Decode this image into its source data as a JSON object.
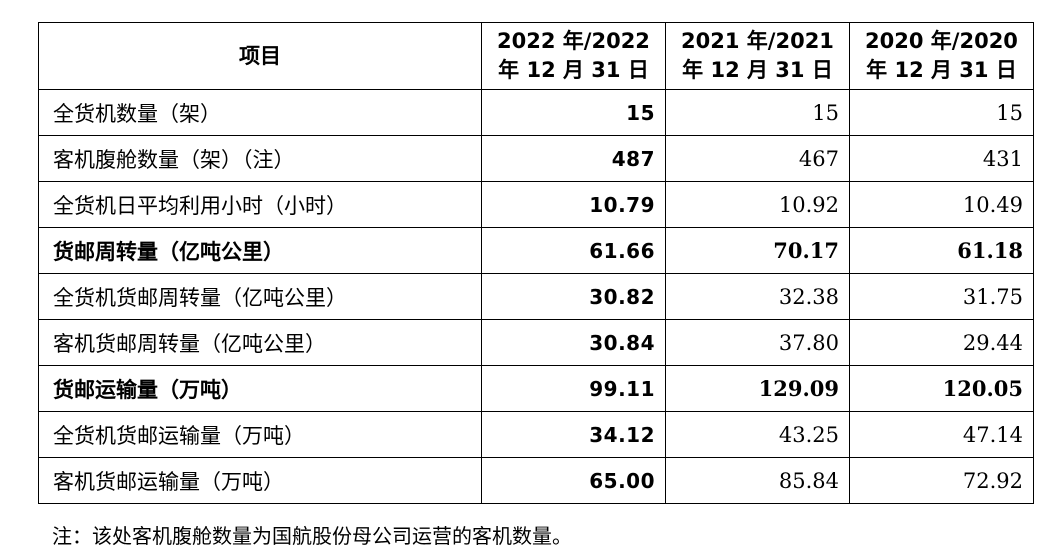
{
  "table": {
    "headers": {
      "item": "项目",
      "col1": [
        "2022 年/2022",
        "年 12 月 31 日"
      ],
      "col2": [
        "2021 年/2021",
        "年 12 月 31 日"
      ],
      "col3": [
        "2020 年/2020",
        "年 12 月 31 日"
      ]
    },
    "rows": [
      {
        "label": "全货机数量（架）",
        "v2022": "15",
        "v2021": "15",
        "v2020": "15",
        "bold": false
      },
      {
        "label": "客机腹舱数量（架）（注）",
        "v2022": "487",
        "v2021": "467",
        "v2020": "431",
        "bold": false
      },
      {
        "label": "全货机日平均利用小时（小时）",
        "v2022": "10.79",
        "v2021": "10.92",
        "v2020": "10.49",
        "bold": false
      },
      {
        "label": "货邮周转量（亿吨公里）",
        "v2022": "61.66",
        "v2021": "70.17",
        "v2020": "61.18",
        "bold": true
      },
      {
        "label": "全货机货邮周转量（亿吨公里）",
        "v2022": "30.82",
        "v2021": "32.38",
        "v2020": "31.75",
        "bold": false
      },
      {
        "label": "客机货邮周转量（亿吨公里）",
        "v2022": "30.84",
        "v2021": "37.80",
        "v2020": "29.44",
        "bold": false
      },
      {
        "label": "货邮运输量（万吨）",
        "v2022": "99.11",
        "v2021": "129.09",
        "v2020": "120.05",
        "bold": true
      },
      {
        "label": "全货机货邮运输量（万吨）",
        "v2022": "34.12",
        "v2021": "43.25",
        "v2020": "47.14",
        "bold": false
      },
      {
        "label": "客机货邮运输量（万吨）",
        "v2022": "65.00",
        "v2021": "85.84",
        "v2020": "72.92",
        "bold": false
      }
    ]
  },
  "note": "注：该处客机腹舱数量为国航股份母公司运营的客机数量。"
}
